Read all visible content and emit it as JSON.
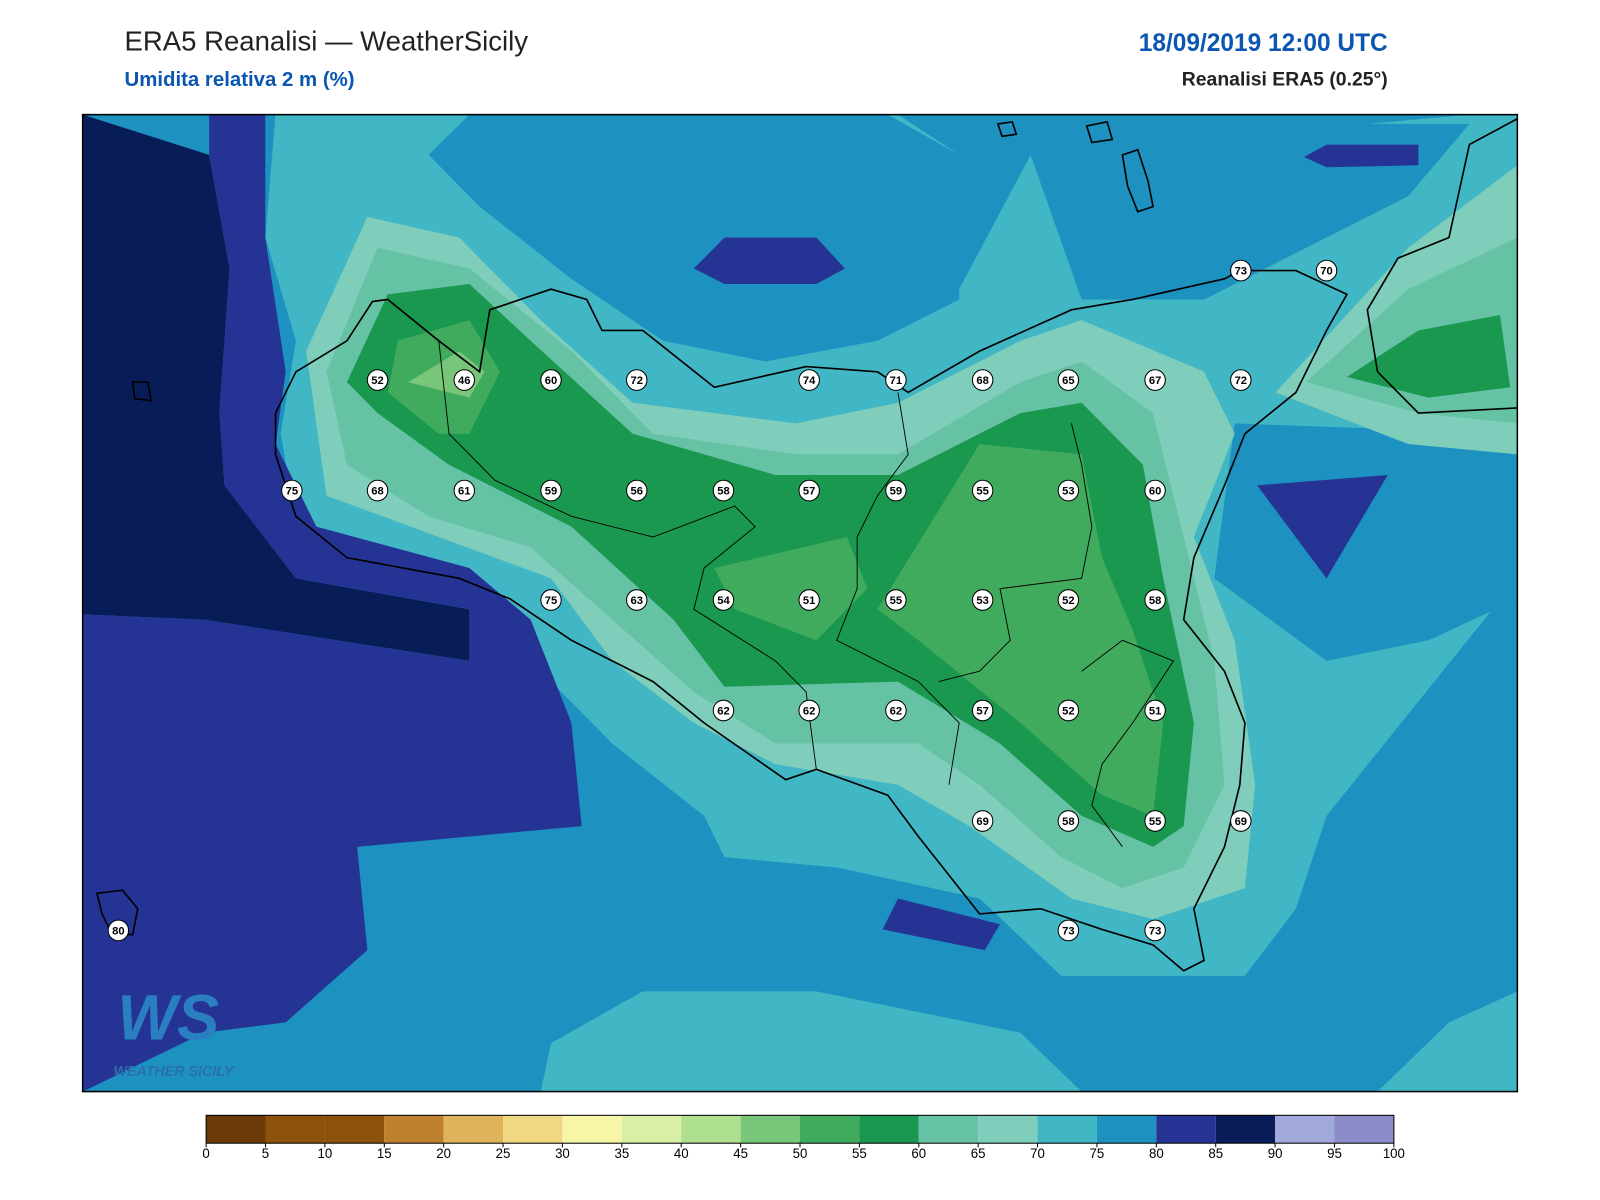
{
  "header": {
    "title": "ERA5 Reanalisi — WeatherSicily",
    "subtitle": "Umidita relativa 2 m (%)",
    "datetime": "18/09/2019 12:00 UTC",
    "source": "Reanalisi ERA5 (0.25°)"
  },
  "stations": [
    52,
    46,
    60,
    72,
    74,
    71,
    68,
    65,
    67,
    72,
    73,
    70,
    75,
    68,
    61,
    59,
    56,
    58,
    57,
    59,
    55,
    53,
    60,
    75,
    63,
    54,
    51,
    55,
    53,
    52,
    58,
    62,
    62,
    62,
    57,
    52,
    51,
    69,
    58,
    55,
    69,
    80,
    73,
    73
  ],
  "colorbar": {
    "ticks": [
      0,
      5,
      10,
      15,
      20,
      25,
      30,
      35,
      40,
      45,
      50,
      55,
      60,
      65,
      70,
      75,
      80,
      85,
      90,
      95,
      100
    ],
    "colors": [
      "#6b3a07",
      "#8c510a",
      "#8c510a",
      "#bf812d",
      "#dfb35c",
      "#f0d882",
      "#f6f6a6",
      "#d9efa6",
      "#addf8e",
      "#78c679",
      "#41ab5d",
      "#1a9850",
      "#66c2a4",
      "#7fcdbb",
      "#41b6c4",
      "#1d91c0",
      "#253494",
      "#081d58",
      "#a0a8dc",
      "#8c8cc8"
    ]
  },
  "logo": {
    "mark": "WS",
    "text": "WEATHER SICILY"
  }
}
